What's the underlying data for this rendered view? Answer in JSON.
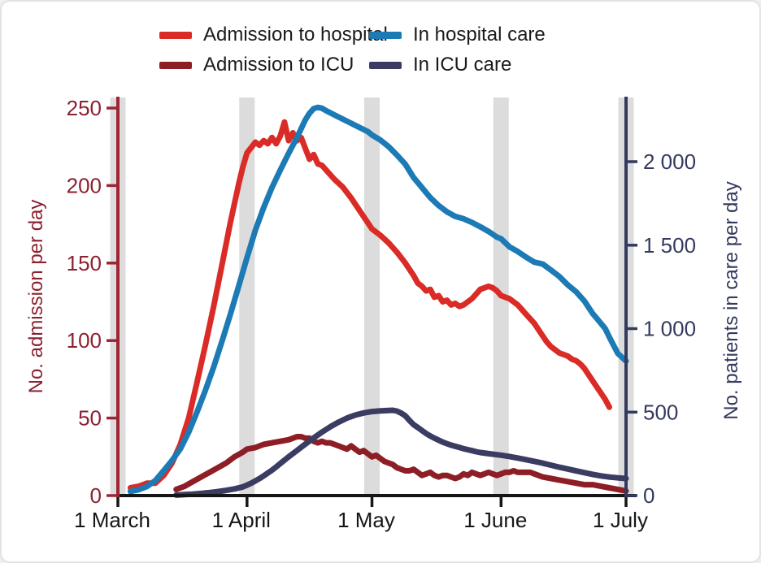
{
  "legend": {
    "items": [
      {
        "label": "Admission to hospital",
        "color": "#da2b27"
      },
      {
        "label": "Admission to ICU",
        "color": "#8e1e26"
      },
      {
        "label": "In hospital care",
        "color": "#1c7ab5"
      },
      {
        "label": "In ICU care",
        "color": "#3a3c62"
      }
    ]
  },
  "chart_data": {
    "type": "line",
    "title": "",
    "legend_position": "top",
    "grid": false,
    "month_band_color": "#dcdcdc",
    "x_axis": {
      "labels": [
        "1 March",
        "1 April",
        "1 May",
        "1 June",
        "1 July"
      ],
      "tick_days": [
        0,
        31,
        61,
        92,
        122
      ],
      "range_days": [
        0,
        122
      ],
      "color": "#161616"
    },
    "left_axis": {
      "title": "No. admission per day",
      "ticks": [
        0,
        50,
        100,
        150,
        200,
        250
      ],
      "range": [
        0,
        250
      ],
      "axis_color": "#9e2433",
      "label_color": "#8c2130"
    },
    "right_axis": {
      "title": "No. patients in care per day",
      "ticks": [
        0,
        500,
        1000,
        1500,
        2000
      ],
      "tick_labels": [
        "0",
        "500",
        "1 000",
        "1 500",
        "2 000"
      ],
      "range": [
        0,
        2000
      ],
      "axis_color": "#343a5e",
      "label_color": "#343a5e"
    },
    "series": [
      {
        "name": "Admission to hospital",
        "axis": "left",
        "color": "#da2b27",
        "points": [
          [
            3,
            5
          ],
          [
            5,
            6
          ],
          [
            7,
            8
          ],
          [
            9,
            8
          ],
          [
            11,
            13
          ],
          [
            13,
            21
          ],
          [
            15,
            33
          ],
          [
            17,
            50
          ],
          [
            19,
            73
          ],
          [
            21,
            97
          ],
          [
            23,
            122
          ],
          [
            25,
            149
          ],
          [
            27,
            176
          ],
          [
            29,
            201
          ],
          [
            30,
            212
          ],
          [
            31,
            221
          ],
          [
            33,
            228
          ],
          [
            34,
            226
          ],
          [
            35,
            229
          ],
          [
            36,
            227
          ],
          [
            37,
            231
          ],
          [
            38,
            227
          ],
          [
            39,
            232
          ],
          [
            40,
            241
          ],
          [
            41,
            229
          ],
          [
            42,
            234
          ],
          [
            43,
            229
          ],
          [
            44,
            231
          ],
          [
            45,
            224
          ],
          [
            46,
            217
          ],
          [
            47,
            220
          ],
          [
            48,
            214
          ],
          [
            49,
            213
          ],
          [
            50,
            210
          ],
          [
            52,
            204
          ],
          [
            54,
            199
          ],
          [
            56,
            192
          ],
          [
            58,
            184
          ],
          [
            60,
            176
          ],
          [
            61,
            172
          ],
          [
            63,
            168
          ],
          [
            65,
            163
          ],
          [
            67,
            157
          ],
          [
            69,
            150
          ],
          [
            70,
            146
          ],
          [
            71,
            142
          ],
          [
            72,
            137
          ],
          [
            73,
            135
          ],
          [
            74,
            132
          ],
          [
            75,
            133
          ],
          [
            76,
            128
          ],
          [
            77,
            129
          ],
          [
            78,
            125
          ],
          [
            79,
            126
          ],
          [
            80,
            123
          ],
          [
            81,
            124
          ],
          [
            82,
            122
          ],
          [
            83,
            123
          ],
          [
            84,
            125
          ],
          [
            85,
            127
          ],
          [
            86,
            130
          ],
          [
            87,
            133
          ],
          [
            88,
            134
          ],
          [
            89,
            135
          ],
          [
            90,
            134
          ],
          [
            91,
            132
          ],
          [
            92,
            129
          ],
          [
            93,
            128
          ],
          [
            94,
            127
          ],
          [
            95,
            125
          ],
          [
            96,
            123
          ],
          [
            97,
            120
          ],
          [
            98,
            117
          ],
          [
            99,
            114
          ],
          [
            100,
            111
          ],
          [
            101,
            107
          ],
          [
            102,
            103
          ],
          [
            103,
            99
          ],
          [
            104,
            96
          ],
          [
            105,
            94
          ],
          [
            106,
            92
          ],
          [
            107,
            91
          ],
          [
            108,
            90
          ],
          [
            109,
            88
          ],
          [
            110,
            87
          ],
          [
            111,
            85
          ],
          [
            112,
            82
          ],
          [
            113,
            78
          ],
          [
            114,
            74
          ],
          [
            115,
            70
          ],
          [
            116,
            66
          ],
          [
            117,
            62
          ],
          [
            118,
            57
          ]
        ]
      },
      {
        "name": "In hospital care",
        "axis": "right",
        "color": "#1c7ab5",
        "points": [
          [
            3,
            25
          ],
          [
            5,
            35
          ],
          [
            7,
            55
          ],
          [
            9,
            90
          ],
          [
            11,
            150
          ],
          [
            13,
            210
          ],
          [
            15,
            280
          ],
          [
            17,
            380
          ],
          [
            19,
            500
          ],
          [
            21,
            630
          ],
          [
            23,
            770
          ],
          [
            25,
            925
          ],
          [
            27,
            1085
          ],
          [
            29,
            1255
          ],
          [
            31,
            1425
          ],
          [
            33,
            1590
          ],
          [
            35,
            1725
          ],
          [
            37,
            1845
          ],
          [
            39,
            1950
          ],
          [
            41,
            2050
          ],
          [
            43,
            2145
          ],
          [
            45,
            2250
          ],
          [
            46,
            2290
          ],
          [
            47,
            2318
          ],
          [
            48,
            2325
          ],
          [
            49,
            2320
          ],
          [
            50,
            2305
          ],
          [
            52,
            2280
          ],
          [
            54,
            2255
          ],
          [
            56,
            2230
          ],
          [
            58,
            2205
          ],
          [
            60,
            2180
          ],
          [
            61,
            2160
          ],
          [
            63,
            2130
          ],
          [
            65,
            2090
          ],
          [
            67,
            2040
          ],
          [
            69,
            1985
          ],
          [
            71,
            1905
          ],
          [
            73,
            1845
          ],
          [
            75,
            1785
          ],
          [
            77,
            1737
          ],
          [
            79,
            1700
          ],
          [
            81,
            1672
          ],
          [
            83,
            1658
          ],
          [
            85,
            1636
          ],
          [
            87,
            1610
          ],
          [
            89,
            1582
          ],
          [
            91,
            1548
          ],
          [
            92,
            1538
          ],
          [
            94,
            1490
          ],
          [
            96,
            1462
          ],
          [
            98,
            1428
          ],
          [
            100,
            1398
          ],
          [
            102,
            1387
          ],
          [
            104,
            1350
          ],
          [
            106,
            1312
          ],
          [
            108,
            1262
          ],
          [
            110,
            1221
          ],
          [
            112,
            1165
          ],
          [
            114,
            1090
          ],
          [
            115,
            1061
          ],
          [
            117,
            1000
          ],
          [
            118,
            949
          ],
          [
            120,
            852
          ],
          [
            122,
            806
          ]
        ]
      },
      {
        "name": "Admission to ICU",
        "axis": "left",
        "color": "#8e1e26",
        "points": [
          [
            14,
            4
          ],
          [
            16,
            6
          ],
          [
            18,
            9
          ],
          [
            20,
            12
          ],
          [
            22,
            15
          ],
          [
            24,
            18
          ],
          [
            26,
            21
          ],
          [
            28,
            25
          ],
          [
            30,
            28
          ],
          [
            31,
            30
          ],
          [
            33,
            31
          ],
          [
            35,
            33
          ],
          [
            37,
            34
          ],
          [
            39,
            35
          ],
          [
            41,
            36
          ],
          [
            43,
            38
          ],
          [
            44,
            38
          ],
          [
            45,
            37
          ],
          [
            46,
            37
          ],
          [
            47,
            35
          ],
          [
            48,
            34
          ],
          [
            49,
            35
          ],
          [
            50,
            34
          ],
          [
            51,
            34
          ],
          [
            52,
            33
          ],
          [
            53,
            32
          ],
          [
            54,
            31
          ],
          [
            55,
            30
          ],
          [
            56,
            32
          ],
          [
            57,
            30
          ],
          [
            58,
            28
          ],
          [
            59,
            29
          ],
          [
            60,
            27
          ],
          [
            61,
            25
          ],
          [
            62,
            26
          ],
          [
            63,
            24
          ],
          [
            64,
            22
          ],
          [
            65,
            21
          ],
          [
            66,
            20
          ],
          [
            67,
            18
          ],
          [
            68,
            17
          ],
          [
            69,
            16
          ],
          [
            70,
            16
          ],
          [
            71,
            17
          ],
          [
            72,
            15
          ],
          [
            73,
            13
          ],
          [
            74,
            14
          ],
          [
            75,
            15
          ],
          [
            76,
            13
          ],
          [
            77,
            12
          ],
          [
            78,
            13
          ],
          [
            79,
            13
          ],
          [
            80,
            12
          ],
          [
            81,
            11
          ],
          [
            82,
            12
          ],
          [
            83,
            14
          ],
          [
            84,
            13
          ],
          [
            85,
            15
          ],
          [
            86,
            14
          ],
          [
            87,
            13
          ],
          [
            88,
            14
          ],
          [
            89,
            15
          ],
          [
            90,
            14
          ],
          [
            91,
            13
          ],
          [
            92,
            14
          ],
          [
            93,
            15
          ],
          [
            94,
            15
          ],
          [
            95,
            16
          ],
          [
            96,
            15
          ],
          [
            98,
            15
          ],
          [
            99,
            15
          ],
          [
            100,
            14
          ],
          [
            101,
            13
          ],
          [
            102,
            12
          ],
          [
            104,
            11
          ],
          [
            106,
            10
          ],
          [
            108,
            9
          ],
          [
            110,
            8
          ],
          [
            112,
            7
          ],
          [
            114,
            7
          ],
          [
            116,
            6
          ],
          [
            118,
            5
          ],
          [
            120,
            4
          ],
          [
            122,
            3
          ]
        ]
      },
      {
        "name": "In ICU care",
        "axis": "right",
        "color": "#3a3c62",
        "points": [
          [
            14,
            3
          ],
          [
            16,
            6
          ],
          [
            18,
            9
          ],
          [
            20,
            13
          ],
          [
            22,
            18
          ],
          [
            24,
            24
          ],
          [
            26,
            31
          ],
          [
            28,
            40
          ],
          [
            30,
            52
          ],
          [
            31,
            63
          ],
          [
            32,
            74
          ],
          [
            33,
            88
          ],
          [
            34,
            102
          ],
          [
            35,
            118
          ],
          [
            36,
            135
          ],
          [
            37,
            152
          ],
          [
            38,
            172
          ],
          [
            39,
            192
          ],
          [
            41,
            232
          ],
          [
            43,
            270
          ],
          [
            45,
            308
          ],
          [
            47,
            345
          ],
          [
            49,
            380
          ],
          [
            51,
            412
          ],
          [
            53,
            440
          ],
          [
            55,
            464
          ],
          [
            57,
            482
          ],
          [
            59,
            495
          ],
          [
            61,
            503
          ],
          [
            63,
            507
          ],
          [
            65,
            510
          ],
          [
            66,
            511
          ],
          [
            67,
            506
          ],
          [
            68,
            494
          ],
          [
            69,
            478
          ],
          [
            70,
            450
          ],
          [
            71,
            425
          ],
          [
            72,
            408
          ],
          [
            73,
            390
          ],
          [
            74,
            372
          ],
          [
            75,
            357
          ],
          [
            76,
            344
          ],
          [
            77,
            332
          ],
          [
            78,
            320
          ],
          [
            79,
            311
          ],
          [
            80,
            302
          ],
          [
            81,
            295
          ],
          [
            82,
            288
          ],
          [
            83,
            281
          ],
          [
            84,
            275
          ],
          [
            85,
            269
          ],
          [
            86,
            263
          ],
          [
            87,
            258
          ],
          [
            89,
            251
          ],
          [
            91,
            245
          ],
          [
            92,
            242
          ],
          [
            94,
            234
          ],
          [
            96,
            225
          ],
          [
            98,
            215
          ],
          [
            100,
            205
          ],
          [
            102,
            194
          ],
          [
            104,
            182
          ],
          [
            106,
            170
          ],
          [
            108,
            159
          ],
          [
            110,
            148
          ],
          [
            112,
            137
          ],
          [
            114,
            127
          ],
          [
            116,
            118
          ],
          [
            118,
            111
          ],
          [
            120,
            106
          ],
          [
            122,
            102
          ]
        ]
      }
    ]
  }
}
